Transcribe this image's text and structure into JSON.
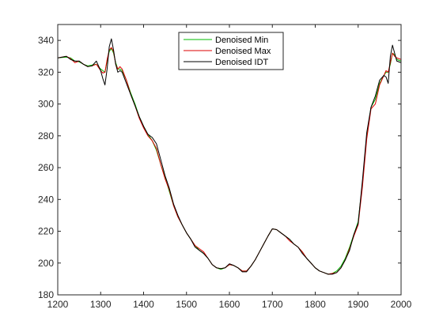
{
  "chart_data": {
    "type": "line",
    "title": "",
    "xlabel": "",
    "ylabel": "",
    "xlim": [
      1200,
      2000
    ],
    "ylim": [
      180,
      350
    ],
    "xticks": [
      1200,
      1300,
      1400,
      1500,
      1600,
      1700,
      1800,
      1900,
      2000
    ],
    "yticks": [
      180,
      200,
      220,
      240,
      260,
      280,
      300,
      320,
      340
    ],
    "grid": false,
    "legend_position": "top-center",
    "series": [
      {
        "name": "Denoised Min",
        "color": "#00bb00",
        "points": [
          [
            1200,
            329
          ],
          [
            1220,
            329.5
          ],
          [
            1230,
            329
          ],
          [
            1240,
            327
          ],
          [
            1250,
            326.5
          ],
          [
            1260,
            325
          ],
          [
            1270,
            324
          ],
          [
            1280,
            324.5
          ],
          [
            1290,
            325
          ],
          [
            1300,
            322
          ],
          [
            1310,
            320
          ],
          [
            1315,
            327
          ],
          [
            1320,
            333
          ],
          [
            1325,
            335
          ],
          [
            1330,
            332
          ],
          [
            1335,
            326
          ],
          [
            1340,
            322
          ],
          [
            1345,
            322
          ],
          [
            1350,
            321
          ],
          [
            1360,
            315
          ],
          [
            1370,
            307
          ],
          [
            1380,
            300
          ],
          [
            1390,
            292
          ],
          [
            1400,
            286
          ],
          [
            1410,
            281
          ],
          [
            1420,
            277
          ],
          [
            1430,
            271
          ],
          [
            1440,
            262
          ],
          [
            1450,
            254
          ],
          [
            1460,
            245
          ],
          [
            1470,
            236
          ],
          [
            1480,
            229
          ],
          [
            1490,
            224
          ],
          [
            1500,
            219
          ],
          [
            1510,
            215
          ],
          [
            1520,
            211
          ],
          [
            1530,
            208
          ],
          [
            1540,
            206
          ],
          [
            1550,
            203
          ],
          [
            1560,
            199
          ],
          [
            1570,
            197
          ],
          [
            1580,
            196
          ],
          [
            1590,
            197
          ],
          [
            1600,
            199
          ],
          [
            1610,
            198.5
          ],
          [
            1620,
            197
          ],
          [
            1630,
            195
          ],
          [
            1640,
            195
          ],
          [
            1650,
            198
          ],
          [
            1660,
            202
          ],
          [
            1670,
            207
          ],
          [
            1680,
            212
          ],
          [
            1690,
            217
          ],
          [
            1700,
            221.5
          ],
          [
            1710,
            221
          ],
          [
            1720,
            219
          ],
          [
            1730,
            217
          ],
          [
            1740,
            215
          ],
          [
            1750,
            212
          ],
          [
            1760,
            210
          ],
          [
            1770,
            207
          ],
          [
            1780,
            203
          ],
          [
            1790,
            200
          ],
          [
            1800,
            197
          ],
          [
            1810,
            195
          ],
          [
            1820,
            194
          ],
          [
            1830,
            193
          ],
          [
            1840,
            193.5
          ],
          [
            1850,
            195
          ],
          [
            1860,
            198
          ],
          [
            1870,
            203
          ],
          [
            1880,
            210
          ],
          [
            1890,
            218
          ],
          [
            1900,
            226
          ],
          [
            1910,
            250
          ],
          [
            1920,
            280
          ],
          [
            1930,
            298
          ],
          [
            1940,
            303
          ],
          [
            1950,
            313
          ],
          [
            1960,
            318
          ],
          [
            1965,
            320
          ],
          [
            1970,
            320
          ],
          [
            1975,
            325
          ],
          [
            1980,
            332
          ],
          [
            1985,
            331
          ],
          [
            1990,
            328
          ],
          [
            2000,
            327
          ]
        ]
      },
      {
        "name": "Denoised Max",
        "color": "#dd0000",
        "points": [
          [
            1200,
            329
          ],
          [
            1210,
            329.5
          ],
          [
            1220,
            330
          ],
          [
            1230,
            328.5
          ],
          [
            1240,
            326
          ],
          [
            1250,
            327
          ],
          [
            1260,
            325
          ],
          [
            1270,
            323.5
          ],
          [
            1280,
            324
          ],
          [
            1290,
            325
          ],
          [
            1300,
            321
          ],
          [
            1305,
            319.5
          ],
          [
            1310,
            320
          ],
          [
            1315,
            328
          ],
          [
            1320,
            334
          ],
          [
            1325,
            335.5
          ],
          [
            1330,
            333
          ],
          [
            1335,
            325
          ],
          [
            1340,
            322
          ],
          [
            1345,
            323.5
          ],
          [
            1350,
            322
          ],
          [
            1360,
            315
          ],
          [
            1370,
            306
          ],
          [
            1380,
            299
          ],
          [
            1390,
            291
          ],
          [
            1400,
            285
          ],
          [
            1410,
            280
          ],
          [
            1420,
            277
          ],
          [
            1430,
            272
          ],
          [
            1440,
            262
          ],
          [
            1450,
            253
          ],
          [
            1460,
            246
          ],
          [
            1470,
            236
          ],
          [
            1480,
            229
          ],
          [
            1490,
            224
          ],
          [
            1500,
            219
          ],
          [
            1510,
            215
          ],
          [
            1520,
            211
          ],
          [
            1530,
            209
          ],
          [
            1540,
            207
          ],
          [
            1550,
            203
          ],
          [
            1560,
            199
          ],
          [
            1570,
            197
          ],
          [
            1580,
            196.5
          ],
          [
            1590,
            197
          ],
          [
            1600,
            199
          ],
          [
            1610,
            198.5
          ],
          [
            1620,
            197
          ],
          [
            1630,
            195
          ],
          [
            1640,
            195
          ],
          [
            1650,
            198
          ],
          [
            1660,
            202
          ],
          [
            1670,
            207
          ],
          [
            1680,
            212
          ],
          [
            1690,
            217
          ],
          [
            1700,
            221.5
          ],
          [
            1710,
            221
          ],
          [
            1720,
            219
          ],
          [
            1730,
            217
          ],
          [
            1740,
            214
          ],
          [
            1750,
            212
          ],
          [
            1760,
            210
          ],
          [
            1770,
            207
          ],
          [
            1780,
            203
          ],
          [
            1790,
            200
          ],
          [
            1800,
            197
          ],
          [
            1810,
            195
          ],
          [
            1820,
            194
          ],
          [
            1830,
            193
          ],
          [
            1840,
            193.5
          ],
          [
            1850,
            194
          ],
          [
            1860,
            197
          ],
          [
            1870,
            202
          ],
          [
            1880,
            209
          ],
          [
            1890,
            217
          ],
          [
            1900,
            224
          ],
          [
            1910,
            248
          ],
          [
            1920,
            278
          ],
          [
            1930,
            297
          ],
          [
            1940,
            300
          ],
          [
            1950,
            312
          ],
          [
            1960,
            318
          ],
          [
            1965,
            321
          ],
          [
            1970,
            320
          ],
          [
            1975,
            326
          ],
          [
            1980,
            332
          ],
          [
            1985,
            330
          ],
          [
            1990,
            329
          ],
          [
            2000,
            328
          ]
        ]
      },
      {
        "name": "Denoised IDT",
        "color": "#000000",
        "points": [
          [
            1200,
            329
          ],
          [
            1210,
            329.5
          ],
          [
            1220,
            330
          ],
          [
            1230,
            328
          ],
          [
            1240,
            327
          ],
          [
            1250,
            327
          ],
          [
            1260,
            325
          ],
          [
            1270,
            323.5
          ],
          [
            1280,
            324
          ],
          [
            1290,
            327
          ],
          [
            1300,
            321
          ],
          [
            1305,
            316
          ],
          [
            1310,
            312
          ],
          [
            1315,
            322
          ],
          [
            1320,
            336
          ],
          [
            1325,
            341
          ],
          [
            1330,
            334
          ],
          [
            1335,
            325
          ],
          [
            1340,
            320
          ],
          [
            1345,
            321
          ],
          [
            1350,
            320
          ],
          [
            1360,
            313
          ],
          [
            1370,
            306
          ],
          [
            1380,
            299
          ],
          [
            1390,
            292
          ],
          [
            1400,
            286
          ],
          [
            1410,
            281
          ],
          [
            1420,
            279
          ],
          [
            1430,
            275
          ],
          [
            1440,
            265
          ],
          [
            1450,
            255
          ],
          [
            1460,
            247
          ],
          [
            1470,
            237
          ],
          [
            1480,
            230
          ],
          [
            1490,
            224
          ],
          [
            1500,
            219
          ],
          [
            1510,
            215
          ],
          [
            1520,
            210
          ],
          [
            1530,
            208
          ],
          [
            1540,
            206
          ],
          [
            1550,
            203
          ],
          [
            1560,
            199
          ],
          [
            1570,
            197
          ],
          [
            1580,
            196.5
          ],
          [
            1590,
            197
          ],
          [
            1600,
            199.5
          ],
          [
            1610,
            198.5
          ],
          [
            1620,
            197
          ],
          [
            1630,
            194.5
          ],
          [
            1640,
            194.5
          ],
          [
            1650,
            198
          ],
          [
            1660,
            202
          ],
          [
            1670,
            207
          ],
          [
            1680,
            212
          ],
          [
            1690,
            217
          ],
          [
            1700,
            221.5
          ],
          [
            1710,
            221
          ],
          [
            1720,
            219
          ],
          [
            1730,
            217
          ],
          [
            1740,
            215
          ],
          [
            1750,
            212
          ],
          [
            1760,
            210
          ],
          [
            1770,
            206
          ],
          [
            1780,
            203
          ],
          [
            1790,
            200
          ],
          [
            1800,
            197
          ],
          [
            1810,
            195
          ],
          [
            1820,
            194
          ],
          [
            1830,
            193
          ],
          [
            1840,
            193
          ],
          [
            1850,
            194
          ],
          [
            1860,
            197
          ],
          [
            1870,
            202
          ],
          [
            1880,
            208
          ],
          [
            1890,
            218
          ],
          [
            1900,
            225
          ],
          [
            1910,
            252
          ],
          [
            1920,
            282
          ],
          [
            1930,
            298
          ],
          [
            1940,
            305
          ],
          [
            1950,
            315
          ],
          [
            1960,
            318
          ],
          [
            1965,
            317
          ],
          [
            1970,
            313
          ],
          [
            1975,
            330
          ],
          [
            1980,
            337
          ],
          [
            1985,
            332
          ],
          [
            1990,
            327
          ],
          [
            2000,
            326
          ]
        ]
      }
    ]
  }
}
